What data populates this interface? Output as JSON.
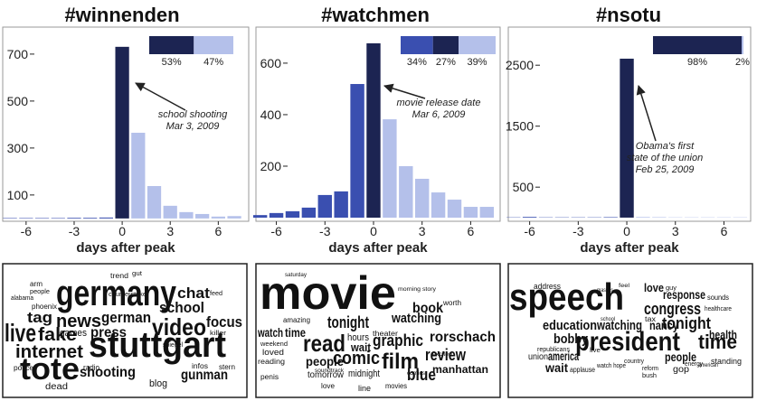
{
  "chart_data": [
    {
      "type": "bar",
      "title": "#winnenden",
      "xlabel": "days after peak",
      "x": [
        -7,
        -6,
        -5,
        -4,
        -3,
        -2,
        -1,
        0,
        1,
        2,
        3,
        4,
        5,
        6,
        7
      ],
      "values": [
        2,
        2,
        2,
        2,
        3,
        3,
        4,
        731,
        365,
        138,
        54,
        27,
        19,
        8,
        10
      ],
      "colors": [
        "#3a4fb0",
        "#3a4fb0",
        "#3a4fb0",
        "#3a4fb0",
        "#3a4fb0",
        "#3a4fb0",
        "#3a4fb0",
        "#1c2452",
        "#b4c0ea",
        "#b4c0ea",
        "#b4c0ea",
        "#b4c0ea",
        "#b4c0ea",
        "#b4c0ea",
        "#b4c0ea"
      ],
      "xlim": [
        -7.46,
        7.9
      ],
      "xticks": [
        -6,
        -3,
        0,
        3,
        6
      ],
      "ylim": [
        -12,
        815
      ],
      "yticks": [
        100,
        300,
        500,
        700
      ],
      "shares": {
        "values": [
          53,
          47
        ],
        "value_labels": [
          "53%",
          "47%"
        ],
        "colors": [
          "#1c2452",
          "#b4c0ea"
        ]
      },
      "annotation": [
        "school shooting",
        "Mar 3, 2009"
      ]
    },
    {
      "type": "bar",
      "title": "#watchmen",
      "xlabel": "days after peak",
      "x": [
        -7,
        -6,
        -5,
        -4,
        -3,
        -2,
        -1,
        0,
        1,
        2,
        3,
        4,
        5,
        6,
        7
      ],
      "values": [
        10,
        18,
        25,
        39,
        88,
        102,
        519,
        677,
        382,
        200,
        151,
        98,
        70,
        42,
        42
      ],
      "colors": [
        "#3a4fb0",
        "#3a4fb0",
        "#3a4fb0",
        "#3a4fb0",
        "#3a4fb0",
        "#3a4fb0",
        "#3a4fb0",
        "#1c2452",
        "#b4c0ea",
        "#b4c0ea",
        "#b4c0ea",
        "#b4c0ea",
        "#b4c0ea",
        "#b4c0ea",
        "#b4c0ea"
      ],
      "xlim": [
        -7.26,
        7.82
      ],
      "xticks": [
        -6,
        -3,
        0,
        3,
        6
      ],
      "ylim": [
        -14,
        740
      ],
      "yticks": [
        200,
        400,
        600
      ],
      "shares": {
        "values": [
          34,
          27,
          39
        ],
        "value_labels": [
          "34%",
          "27%",
          "39%"
        ],
        "colors": [
          "#3a4fb0",
          "#1c2452",
          "#b4c0ea"
        ]
      },
      "annotation": [
        "movie release date",
        "Mar 6, 2009"
      ]
    },
    {
      "type": "bar",
      "title": "#nsotu",
      "xlabel": "days after peak",
      "x": [
        -7,
        -6,
        -5,
        -4,
        -3,
        -2,
        -1,
        0,
        1,
        2,
        3,
        4,
        5,
        6,
        7
      ],
      "values": [
        5,
        12,
        5,
        5,
        5,
        5,
        8,
        2607,
        10,
        8,
        5,
        5,
        5,
        5,
        5
      ],
      "colors": [
        "#3a4fb0",
        "#3a4fb0",
        "#3a4fb0",
        "#3a4fb0",
        "#3a4fb0",
        "#3a4fb0",
        "#3a4fb0",
        "#1c2452",
        "#b4c0ea",
        "#b4c0ea",
        "#b4c0ea",
        "#b4c0ea",
        "#b4c0ea",
        "#b4c0ea",
        "#b4c0ea"
      ],
      "xlim": [
        -7.32,
        7.65
      ],
      "xticks": [
        -6,
        -3,
        0,
        3,
        6
      ],
      "ylim": [
        -60,
        3125
      ],
      "yticks": [
        500,
        1500,
        2500
      ],
      "shares": {
        "values": [
          98,
          2
        ],
        "value_labels": [
          "98%",
          "2%"
        ],
        "colors": [
          "#1c2452",
          "#b4c0ea"
        ]
      },
      "annotation": [
        "Obama's first",
        "state of the union",
        "Feb 25, 2009"
      ]
    }
  ],
  "word_clouds": [
    {
      "words": [
        "germany",
        "stuttgart",
        "tote",
        "live",
        "fake",
        "internet",
        "news",
        "tag",
        "german",
        "press",
        "games",
        "video",
        "school",
        "chat",
        "focus",
        "shooting",
        "gunman",
        "dead",
        "blog",
        "radio",
        "phoenix",
        "alabama",
        "people",
        "arm",
        "trend",
        "gut",
        "counterstrike",
        "spiegel",
        "police",
        "infos",
        "stern",
        "feed",
        "killer"
      ]
    },
    {
      "words": [
        "movie",
        "read",
        "comic",
        "film",
        "graphic",
        "watching",
        "tonight",
        "book",
        "review",
        "rorschach",
        "manhattan",
        "blue",
        "people",
        "time",
        "watch",
        "hours",
        "wait",
        "midnight",
        "tomorrow",
        "love",
        "line",
        "movies",
        "amazing",
        "loved",
        "reading",
        "saturday",
        "morning story",
        "worth",
        "theater",
        "excited",
        "penis",
        "weekend",
        "soundtrack",
        "comics"
      ]
    },
    {
      "words": [
        "speech",
        "president",
        "time",
        "tonight",
        "congress",
        "response",
        "love",
        "education",
        "watching",
        "bobby",
        "america",
        "wait",
        "people",
        "nancy",
        "health",
        "standing",
        "address",
        "sounds",
        "healthcare",
        "tax",
        "guy",
        "union",
        "gop",
        "republicans",
        "applause",
        "bush",
        "reform",
        "energy",
        "watch hope",
        "live",
        "school",
        "country",
        "american",
        "feel",
        "masses"
      ]
    }
  ]
}
